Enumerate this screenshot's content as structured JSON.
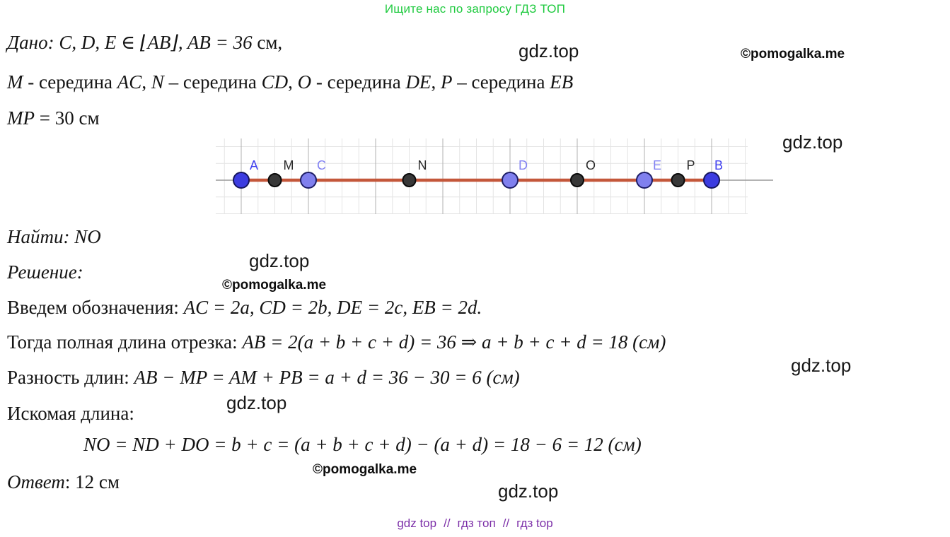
{
  "banner": {
    "text": "Ищите нас по запросу ГДЗ ТОП",
    "color": "#1fca3f"
  },
  "watermarks": {
    "site": "gdz.top",
    "copyright": "©pomogalka.me"
  },
  "solution": {
    "lines": [
      {
        "name": "given-line",
        "segments": [
          {
            "t": "Дано: ",
            "i": true
          },
          {
            "t": "C, D, E ∈ ⌊AB⌋,  AB = 36 ",
            "i": true
          },
          {
            "t": "см,",
            "i": false
          }
        ]
      },
      {
        "name": "midpoints-line",
        "segments": [
          {
            "t": "M",
            "i": true
          },
          {
            "t": " - середина ",
            "i": false
          },
          {
            "t": "AC",
            "i": true
          },
          {
            "t": ", ",
            "i": false
          },
          {
            "t": "N",
            "i": true
          },
          {
            "t": " – середина ",
            "i": false
          },
          {
            "t": "CD",
            "i": true
          },
          {
            "t": ", ",
            "i": false
          },
          {
            "t": "O",
            "i": true
          },
          {
            "t": " - середина ",
            "i": false
          },
          {
            "t": "DE",
            "i": true
          },
          {
            "t": ", ",
            "i": false
          },
          {
            "t": "P",
            "i": true
          },
          {
            "t": " – середина ",
            "i": false
          },
          {
            "t": "EB",
            "i": true
          }
        ]
      },
      {
        "name": "mp-length-line",
        "segments": [
          {
            "t": "MP",
            "i": true
          },
          {
            "t": " = 30 см",
            "i": false
          }
        ]
      },
      {
        "name": "find-line",
        "segments": [
          {
            "t": "Найти: ",
            "i": true
          },
          {
            "t": "NO",
            "i": true
          }
        ]
      },
      {
        "name": "solution-heading",
        "segments": [
          {
            "t": "Решение:",
            "i": true
          }
        ]
      },
      {
        "name": "notation-line",
        "segments": [
          {
            "t": "Введем обозначения: ",
            "i": false
          },
          {
            "t": "AC = 2a, CD = 2b, DE = 2c, EB = 2d.",
            "i": true
          }
        ]
      },
      {
        "name": "total-length-line",
        "segments": [
          {
            "t": "Тогда полная длина отрезка: ",
            "i": false
          },
          {
            "t": "AB = 2(a + b + c + d) = 36 ⇒ a + b + c + d = 18 (см)",
            "i": true
          }
        ]
      },
      {
        "name": "difference-line",
        "segments": [
          {
            "t": "Разность длин: ",
            "i": false
          },
          {
            "t": "AB − MP = AM + PB = a + d = 36 − 30 = 6 (см)",
            "i": true
          }
        ]
      },
      {
        "name": "sought-length-label",
        "segments": [
          {
            "t": "Искомая длина:",
            "i": false
          }
        ]
      },
      {
        "name": "result-formula-line",
        "segments": [
          {
            "t": "NO = ND + DO = b + c = (a + b + c + d) − (a + d) = 18 − 6 = 12 (см)",
            "i": true
          }
        ]
      },
      {
        "name": "answer-line",
        "segments": [
          {
            "t": "Ответ",
            "i": true
          },
          {
            "t": ": 12 см",
            "i": false
          }
        ]
      }
    ]
  },
  "diagram": {
    "description": "number line segment AB with marked points",
    "points": [
      {
        "label": "A",
        "u": 0,
        "kind": "endpoint"
      },
      {
        "label": "M",
        "u": 1,
        "kind": "midpoint"
      },
      {
        "label": "C",
        "u": 2,
        "kind": "division"
      },
      {
        "label": "N",
        "u": 5,
        "kind": "midpoint"
      },
      {
        "label": "D",
        "u": 8,
        "kind": "division"
      },
      {
        "label": "O",
        "u": 10,
        "kind": "midpoint"
      },
      {
        "label": "E",
        "u": 12,
        "kind": "division"
      },
      {
        "label": "P",
        "u": 13,
        "kind": "midpoint"
      },
      {
        "label": "B",
        "u": 14,
        "kind": "endpoint"
      }
    ],
    "colors": {
      "segment": "#c4573a",
      "endpoint_fill": "#3c3ce0",
      "endpoint_stroke": "#16165e",
      "division_fill": "#8080ee",
      "division_stroke": "#1d1d66",
      "midpoint_fill": "#383838",
      "midpoint_stroke": "#0a0a0a",
      "label_endpoint": "#4040ef",
      "label_division": "#8282f2",
      "label_midpoint": "#2b2b2b",
      "grid_minor": "#e4e4e4",
      "grid_major": "#b0b0b0",
      "axis": "#9a9a9a"
    }
  },
  "footer": {
    "links": [
      "gdz top",
      "гдз топ",
      "гдз top"
    ],
    "separator": "//",
    "color": "#7c2fa8"
  }
}
